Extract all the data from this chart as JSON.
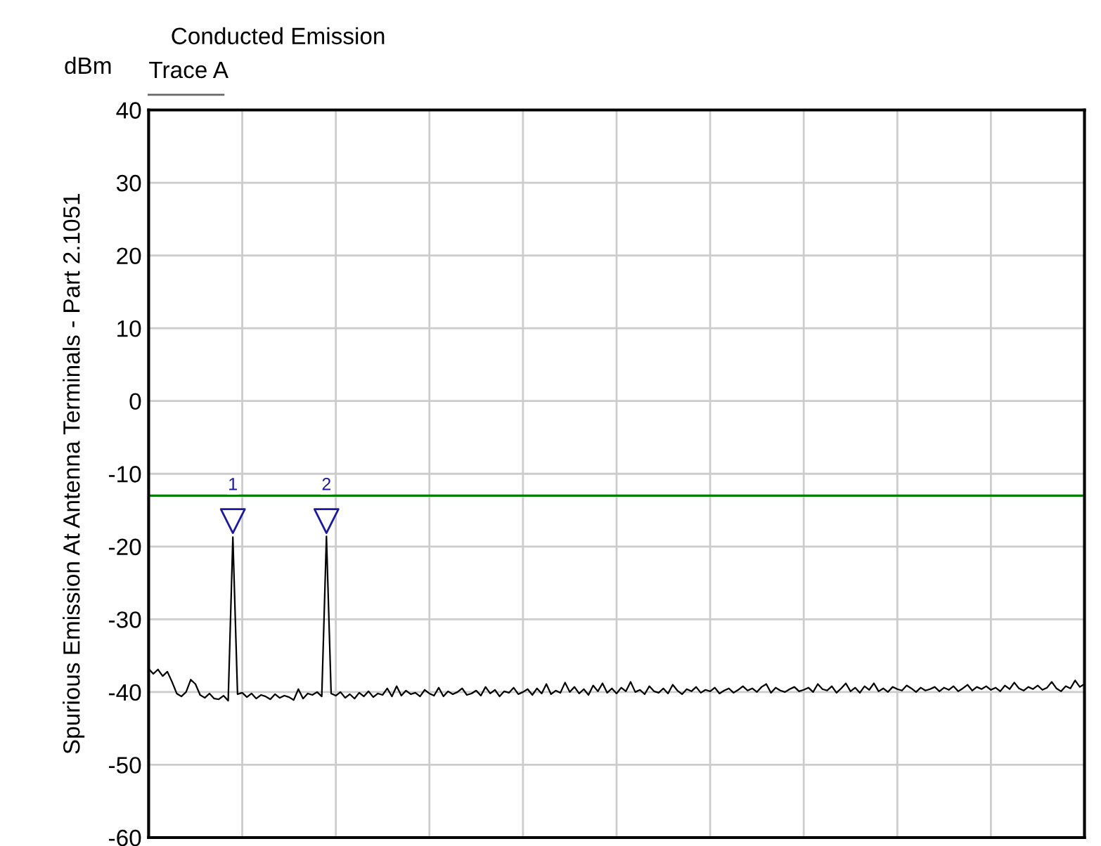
{
  "chart_data": {
    "type": "line",
    "title": "Conducted Emission",
    "ylabel": "Spurious Emission At Antenna Terminals - Part 2.1051",
    "annotations": [
      "dBm"
    ],
    "categories": [
      null,
      null,
      null,
      null,
      null,
      null,
      null,
      null,
      null,
      null,
      null,
      null,
      null,
      null,
      null,
      null,
      null,
      null,
      null,
      null,
      null,
      null,
      null,
      null,
      null,
      null,
      null,
      null,
      null,
      null,
      null,
      null,
      null,
      null,
      null,
      null,
      null,
      null,
      null,
      null,
      null,
      null,
      null,
      null,
      null,
      null,
      null,
      null,
      null,
      null,
      null,
      null,
      null,
      null,
      null,
      null,
      null,
      null,
      null,
      null,
      null,
      null,
      null,
      null,
      null,
      null,
      null,
      null,
      null,
      null,
      null,
      null,
      null,
      null,
      null,
      null,
      null,
      null,
      null,
      null,
      null,
      null,
      null,
      null,
      null,
      null,
      null,
      null,
      null,
      null,
      null,
      null,
      null,
      null,
      null,
      null,
      null,
      null,
      null,
      null,
      null,
      null,
      null,
      null,
      null,
      null,
      null,
      null,
      null,
      null,
      null,
      null,
      null,
      null,
      null,
      null,
      null,
      null,
      null,
      null,
      null,
      null,
      null,
      null,
      null,
      null,
      null,
      null,
      null,
      null,
      null,
      null,
      null,
      null,
      null,
      null,
      null,
      null,
      null,
      null,
      null,
      null,
      null,
      null,
      null,
      null,
      null,
      null,
      null,
      null,
      null,
      null,
      null,
      null,
      null,
      null,
      null,
      null,
      null,
      null,
      null,
      null,
      null,
      null,
      null,
      null,
      null,
      null,
      null,
      null,
      null,
      null,
      null,
      null,
      null,
      null,
      null,
      null,
      null,
      null,
      null,
      null,
      null,
      null,
      null,
      null,
      null,
      null,
      null,
      null,
      null,
      null,
      null,
      null,
      null,
      null,
      null,
      null,
      null,
      null,
      null
    ],
    "series": [
      {
        "name": "Trace A",
        "color": "#000000",
        "values": [
          -36.8,
          -37.5,
          -36.9,
          -37.8,
          -37.2,
          -38.6,
          -40.2,
          -40.6,
          -40.0,
          -38.3,
          -38.9,
          -40.4,
          -40.8,
          -40.2,
          -40.9,
          -41.0,
          -40.5,
          -41.2,
          -18.7,
          -40.3,
          -40.1,
          -40.7,
          -40.2,
          -40.9,
          -40.4,
          -40.6,
          -41.0,
          -40.3,
          -40.8,
          -40.5,
          -40.7,
          -41.1,
          -39.6,
          -40.9,
          -40.2,
          -40.4,
          -40.0,
          -40.6,
          -18.6,
          -40.2,
          -40.5,
          -40.0,
          -40.8,
          -40.3,
          -40.9,
          -40.1,
          -40.6,
          -39.9,
          -40.7,
          -40.2,
          -40.4,
          -39.5,
          -40.6,
          -39.2,
          -40.5,
          -39.8,
          -40.3,
          -40.1,
          -40.6,
          -39.7,
          -40.2,
          -40.5,
          -39.4,
          -40.6,
          -39.9,
          -40.3,
          -40.0,
          -39.5,
          -40.4,
          -40.2,
          -39.8,
          -40.5,
          -39.3,
          -40.2,
          -39.7,
          -40.6,
          -39.9,
          -40.1,
          -39.4,
          -40.3,
          -40.0,
          -39.6,
          -40.4,
          -39.5,
          -40.2,
          -38.9,
          -40.3,
          -39.8,
          -40.1,
          -38.7,
          -40.0,
          -39.3,
          -40.2,
          -39.6,
          -40.4,
          -39.1,
          -39.9,
          -38.8,
          -40.1,
          -39.5,
          -40.2,
          -39.4,
          -39.9,
          -38.6,
          -40.0,
          -39.7,
          -40.3,
          -39.2,
          -39.9,
          -40.1,
          -39.5,
          -40.2,
          -39.0,
          -39.8,
          -40.3,
          -39.6,
          -39.9,
          -39.3,
          -40.1,
          -39.7,
          -39.9,
          -39.4,
          -40.2,
          -39.8,
          -39.5,
          -40.1,
          -39.7,
          -39.2,
          -39.8,
          -39.5,
          -40.0,
          -39.3,
          -38.9,
          -40.1,
          -39.4,
          -39.8,
          -40.0,
          -39.6,
          -39.3,
          -39.9,
          -39.7,
          -39.4,
          -40.0,
          -38.9,
          -39.6,
          -39.8,
          -39.2,
          -40.1,
          -39.5,
          -38.8,
          -39.9,
          -39.4,
          -40.1,
          -39.2,
          -39.7,
          -38.8,
          -39.9,
          -39.5,
          -40.0,
          -39.3,
          -39.6,
          -39.8,
          -39.1,
          -39.5,
          -40.0,
          -39.4,
          -39.8,
          -39.6,
          -39.3,
          -39.9,
          -39.4,
          -39.7,
          -39.2,
          -39.9,
          -39.5,
          -39.0,
          -39.8,
          -39.3,
          -39.6,
          -39.2,
          -39.7,
          -39.4,
          -39.9,
          -39.1,
          -39.6,
          -38.7,
          -39.5,
          -39.8,
          -39.3,
          -39.6,
          -39.1,
          -39.7,
          -39.4,
          -38.6,
          -39.5,
          -39.9,
          -39.2,
          -39.5,
          -38.4,
          -39.3,
          -38.9
        ]
      },
      {
        "name": "1",
        "type": "scatter",
        "marker": "triangle",
        "color": "#1a1aa0",
        "values": [
          null,
          null,
          null,
          null,
          null,
          null,
          null,
          null,
          null,
          null,
          null,
          null,
          null,
          null,
          null,
          null,
          null,
          null,
          -16.5,
          null,
          null,
          null,
          null,
          null,
          null,
          null,
          null,
          null,
          null,
          null,
          null,
          null,
          null,
          null,
          null,
          null,
          null,
          null,
          null,
          null,
          null,
          null,
          null,
          null,
          null,
          null,
          null,
          null,
          null,
          null,
          null,
          null,
          null,
          null,
          null,
          null,
          null,
          null,
          null,
          null,
          null,
          null,
          null,
          null,
          null,
          null,
          null,
          null,
          null,
          null,
          null,
          null,
          null,
          null,
          null,
          null,
          null,
          null,
          null,
          null,
          null,
          null,
          null,
          null,
          null,
          null,
          null,
          null,
          null,
          null,
          null,
          null,
          null,
          null,
          null,
          null,
          null,
          null,
          null,
          null,
          null,
          null,
          null,
          null,
          null,
          null,
          null,
          null,
          null,
          null,
          null,
          null,
          null,
          null,
          null,
          null,
          null,
          null,
          null,
          null,
          null,
          null,
          null,
          null,
          null,
          null,
          null,
          null,
          null,
          null,
          null,
          null,
          null,
          null,
          null,
          null,
          null,
          null,
          null,
          null,
          null,
          null,
          null,
          null,
          null,
          null,
          null,
          null,
          null,
          null,
          null,
          null,
          null,
          null,
          null,
          null,
          null,
          null,
          null,
          null,
          null,
          null,
          null,
          null,
          null,
          null,
          null,
          null,
          null,
          null,
          null,
          null,
          null,
          null,
          null,
          null,
          null,
          null,
          null,
          null,
          null,
          null,
          null,
          null,
          null,
          null,
          null,
          null,
          null,
          null,
          null,
          null,
          null,
          null,
          null,
          null,
          null,
          null,
          null,
          null,
          null
        ]
      },
      {
        "name": "2",
        "type": "scatter",
        "marker": "triangle",
        "color": "#1a1aa0",
        "values": [
          null,
          null,
          null,
          null,
          null,
          null,
          null,
          null,
          null,
          null,
          null,
          null,
          null,
          null,
          null,
          null,
          null,
          null,
          null,
          null,
          null,
          null,
          null,
          null,
          null,
          null,
          null,
          null,
          null,
          null,
          null,
          null,
          null,
          null,
          null,
          null,
          null,
          null,
          -16.5,
          null,
          null,
          null,
          null,
          null,
          null,
          null,
          null,
          null,
          null,
          null,
          null,
          null,
          null,
          null,
          null,
          null,
          null,
          null,
          null,
          null,
          null,
          null,
          null,
          null,
          null,
          null,
          null,
          null,
          null,
          null,
          null,
          null,
          null,
          null,
          null,
          null,
          null,
          null,
          null,
          null,
          null,
          null,
          null,
          null,
          null,
          null,
          null,
          null,
          null,
          null,
          null,
          null,
          null,
          null,
          null,
          null,
          null,
          null,
          null,
          null,
          null,
          null,
          null,
          null,
          null,
          null,
          null,
          null,
          null,
          null,
          null,
          null,
          null,
          null,
          null,
          null,
          null,
          null,
          null,
          null,
          null,
          null,
          null,
          null,
          null,
          null,
          null,
          null,
          null,
          null,
          null,
          null,
          null,
          null,
          null,
          null,
          null,
          null,
          null,
          null,
          null,
          null,
          null,
          null,
          null,
          null,
          null,
          null,
          null,
          null,
          null,
          null,
          null,
          null,
          null,
          null,
          null,
          null,
          null,
          null,
          null,
          null,
          null,
          null,
          null,
          null,
          null,
          null,
          null,
          null,
          null,
          null,
          null,
          null,
          null,
          null,
          null,
          null,
          null,
          null,
          null,
          null,
          null,
          null,
          null,
          null,
          null,
          null,
          null,
          null,
          null,
          null,
          null,
          null,
          null,
          null,
          null,
          null,
          null,
          null,
          null
        ]
      }
    ],
    "ref_lines": [
      {
        "axis": "y",
        "value": -13,
        "color": "#008000"
      }
    ],
    "ylim": [
      -60,
      40
    ],
    "yticks": [
      -60,
      -50,
      -40,
      -30,
      -20,
      -10,
      0,
      10,
      20,
      30,
      40
    ],
    "grid": true,
    "legend": "top left",
    "tick_labels": "y"
  }
}
